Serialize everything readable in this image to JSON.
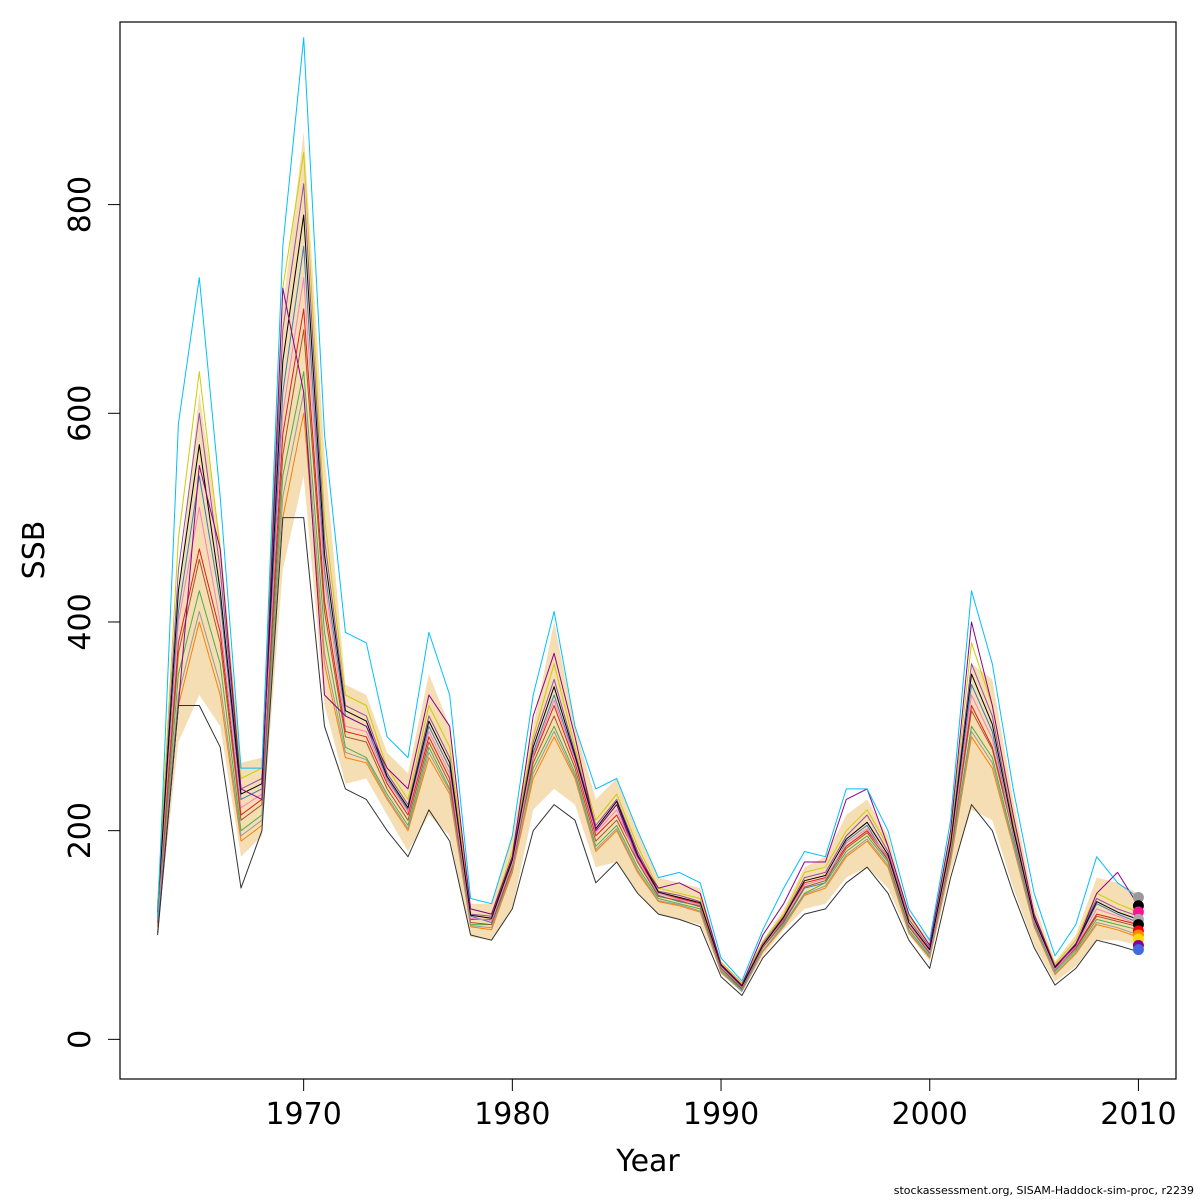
{
  "chart_data": {
    "type": "line",
    "xlabel": "Year",
    "ylabel": "SSB",
    "xlim": [
      1961.2,
      2011.8
    ],
    "ylim": [
      -38,
      975
    ],
    "x_ticks": [
      1970,
      1980,
      1990,
      2000,
      2010
    ],
    "y_ticks": [
      0,
      200,
      400,
      600,
      800
    ],
    "grid": false,
    "legend": "none",
    "x": [
      1963,
      1964,
      1965,
      1966,
      1967,
      1968,
      1969,
      1970,
      1971,
      1972,
      1973,
      1974,
      1975,
      1976,
      1977,
      1978,
      1979,
      1980,
      1981,
      1982,
      1983,
      1984,
      1985,
      1986,
      1987,
      1988,
      1989,
      1990,
      1991,
      1992,
      1993,
      1994,
      1995,
      1996,
      1997,
      1998,
      1999,
      2000,
      2001,
      2002,
      2003,
      2004,
      2005,
      2006,
      2007,
      2008,
      2009,
      2010
    ],
    "band": {
      "color": "#f5deb3",
      "lower": [
        105,
        285,
        330,
        300,
        175,
        195,
        450,
        540,
        320,
        245,
        250,
        215,
        180,
        215,
        195,
        98,
        95,
        125,
        220,
        240,
        225,
        165,
        170,
        140,
        120,
        115,
        110,
        65,
        45,
        80,
        105,
        125,
        130,
        155,
        165,
        145,
        100,
        75,
        160,
        220,
        210,
        145,
        90,
        55,
        70,
        95,
        95,
        90
      ],
      "upper": [
        135,
        430,
        620,
        480,
        265,
        270,
        700,
        870,
        560,
        340,
        330,
        275,
        255,
        350,
        300,
        130,
        130,
        195,
        300,
        400,
        300,
        230,
        250,
        200,
        155,
        150,
        145,
        75,
        55,
        95,
        125,
        165,
        175,
        215,
        230,
        195,
        120,
        95,
        200,
        360,
        345,
        230,
        130,
        75,
        100,
        155,
        150,
        140
      ]
    },
    "series": [
      {
        "values": [
          115,
          380,
          470,
          390,
          215,
          230,
          580,
          700,
          420,
          295,
          290,
          245,
          215,
          290,
          250,
          115,
          115,
          165,
          270,
          320,
          265,
          195,
          215,
          175,
          140,
          135,
          130,
          70,
          50,
          90,
          115,
          150,
          155,
          185,
          200,
          175,
          110,
          85,
          180,
          320,
          280,
          200,
          115,
          68,
          88,
          120,
          115,
          110
        ]
      },
      {
        "values": [
          120,
          410,
          540,
          420,
          230,
          240,
          620,
          760,
          450,
          310,
          300,
          250,
          220,
          300,
          260,
          118,
          112,
          160,
          275,
          330,
          270,
          200,
          225,
          170,
          138,
          132,
          128,
          68,
          48,
          88,
          112,
          145,
          150,
          190,
          205,
          172,
          108,
          82,
          185,
          340,
          295,
          195,
          112,
          66,
          90,
          130,
          120,
          112
        ]
      },
      {
        "values": [
          110,
          350,
          430,
          360,
          200,
          215,
          540,
          640,
          390,
          280,
          270,
          235,
          205,
          280,
          240,
          110,
          110,
          170,
          260,
          300,
          255,
          185,
          205,
          165,
          135,
          130,
          125,
          66,
          47,
          85,
          110,
          140,
          150,
          180,
          195,
          170,
          105,
          80,
          175,
          300,
          270,
          190,
          110,
          65,
          85,
          115,
          110,
          105
        ]
      },
      {
        "values": [
          125,
          450,
          600,
          450,
          240,
          250,
          680,
          820,
          480,
          320,
          310,
          255,
          225,
          310,
          270,
          120,
          118,
          175,
          285,
          345,
          275,
          205,
          230,
          180,
          142,
          138,
          132,
          72,
          52,
          92,
          118,
          155,
          160,
          195,
          215,
          180,
          115,
          88,
          190,
          360,
          310,
          205,
          118,
          70,
          92,
          135,
          125,
          118
        ]
      },
      {
        "values": [
          108,
          320,
          400,
          330,
          190,
          205,
          500,
          600,
          360,
          270,
          265,
          230,
          200,
          270,
          235,
          108,
          105,
          160,
          250,
          290,
          250,
          180,
          200,
          160,
          132,
          128,
          122,
          64,
          46,
          84,
          108,
          138,
          145,
          175,
          190,
          165,
          102,
          78,
          170,
          290,
          260,
          185,
          108,
          62,
          82,
          110,
          105,
          98
        ]
      },
      {
        "values": [
          130,
          480,
          640,
          470,
          250,
          260,
          720,
          850,
          500,
          330,
          320,
          260,
          230,
          320,
          280,
          125,
          120,
          180,
          290,
          360,
          280,
          210,
          235,
          185,
          145,
          140,
          135,
          74,
          54,
          94,
          120,
          160,
          165,
          200,
          220,
          185,
          118,
          90,
          195,
          380,
          320,
          210,
          120,
          72,
          95,
          140,
          130,
          122
        ]
      },
      {
        "values": [
          112,
          370,
          460,
          380,
          210,
          225,
          560,
          680,
          410,
          290,
          285,
          240,
          210,
          285,
          245,
          112,
          110,
          165,
          265,
          310,
          260,
          190,
          210,
          170,
          137,
          133,
          127,
          68,
          49,
          88,
          113,
          146,
          152,
          183,
          198,
          172,
          108,
          83,
          178,
          315,
          278,
          197,
          113,
          67,
          87,
          118,
          113,
          108
        ]
      },
      {
        "values": [
          118,
          400,
          510,
          400,
          222,
          235,
          600,
          730,
          440,
          300,
          295,
          248,
          218,
          295,
          255,
          116,
          114,
          168,
          272,
          325,
          268,
          198,
          220,
          172,
          140,
          134,
          129,
          70,
          50,
          89,
          116,
          148,
          154,
          188,
          202,
          174,
          110,
          84,
          182,
          330,
          288,
          198,
          114,
          67,
          89,
          125,
          118,
          110
        ]
      },
      {
        "values": [
          114,
          330,
          410,
          340,
          195,
          210,
          520,
          620,
          370,
          275,
          268,
          232,
          202,
          275,
          238,
          109,
          107,
          162,
          255,
          295,
          252,
          182,
          202,
          162,
          133,
          129,
          123,
          65,
          46,
          85,
          109,
          139,
          147,
          177,
          192,
          167,
          103,
          79,
          172,
          295,
          265,
          187,
          109,
          63,
          83,
          112,
          107,
          100
        ]
      },
      {
        "values": [
          122,
          430,
          570,
          430,
          235,
          245,
          650,
          790,
          465,
          315,
          305,
          252,
          222,
          305,
          265,
          119,
          116,
          172,
          280,
          338,
          272,
          202,
          228,
          177,
          141,
          136,
          131,
          71,
          51,
          90,
          117,
          152,
          157,
          192,
          208,
          177,
          112,
          86,
          187,
          350,
          302,
          202,
          116,
          69,
          91,
          132,
          122,
          115
        ]
      },
      {
        "values": [
          102,
          320,
          550,
          470,
          240,
          230,
          720,
          620,
          330,
          310,
          300,
          260,
          240,
          330,
          300,
          125,
          120,
          175,
          310,
          370,
          290,
          200,
          225,
          175,
          145,
          150,
          140,
          72,
          52,
          100,
          130,
          170,
          170,
          230,
          240,
          185,
          120,
          90,
          200,
          400,
          320,
          215,
          120,
          70,
          90,
          140,
          160,
          128
        ]
      },
      {
        "values": [
          116,
          590,
          730,
          520,
          260,
          260,
          760,
          960,
          580,
          390,
          380,
          290,
          270,
          390,
          330,
          135,
          130,
          195,
          330,
          410,
          300,
          240,
          250,
          200,
          155,
          160,
          150,
          78,
          56,
          105,
          145,
          180,
          175,
          240,
          240,
          200,
          125,
          95,
          210,
          430,
          360,
          240,
          140,
          80,
          110,
          175,
          150,
          136
        ]
      },
      {
        "values": [
          100,
          320,
          320,
          280,
          145,
          200,
          500,
          500,
          300,
          240,
          230,
          200,
          175,
          220,
          190,
          100,
          95,
          125,
          200,
          225,
          210,
          150,
          170,
          140,
          120,
          115,
          108,
          60,
          42,
          78,
          100,
          120,
          125,
          150,
          165,
          140,
          95,
          68,
          155,
          225,
          200,
          140,
          88,
          52,
          68,
          95,
          90,
          84
        ]
      }
    ],
    "series_colors": [
      "#e41a1c",
      "#377eb8",
      "#4daf4a",
      "#984ea3",
      "#ff7f00",
      "#cdcd00",
      "#a65628",
      "#f781bf",
      "#999999",
      "#000000",
      "#8b008b",
      "#00bfff",
      "#333333"
    ],
    "endpoint_colors": [
      "#999999",
      "#000000",
      "#ff1493",
      "#a9a9a9",
      "#000000",
      "#ff0000",
      "#ff8c00",
      "#ffd700",
      "#8b008b",
      "#4169e1"
    ],
    "endpoint_values": [
      136,
      128,
      122,
      115,
      110,
      104,
      100,
      96,
      90,
      86
    ]
  },
  "footer": "stockassessment.org, SISAM-Haddock-sim-proc, r2239"
}
